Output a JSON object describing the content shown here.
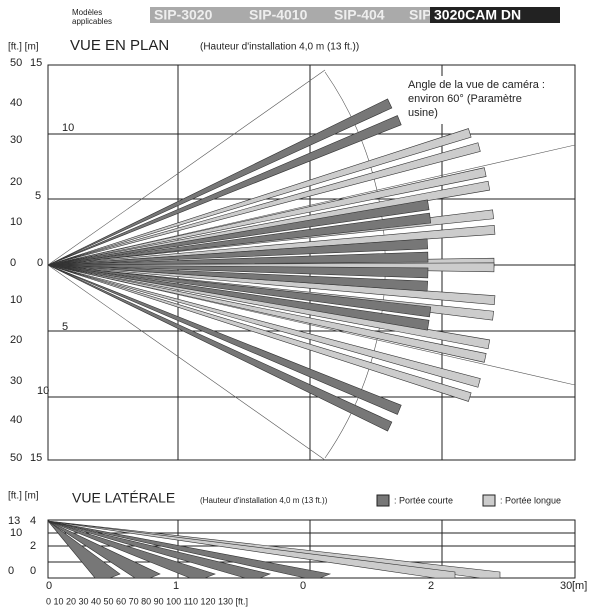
{
  "header": {
    "caption": [
      "Modèles",
      "applicables"
    ],
    "models": [
      "SIP-3020",
      "SIP-4010",
      "SIP-404",
      "SIP-",
      "3020CAM DN"
    ]
  },
  "plan": {
    "units": "[ft.] [m]",
    "title": "VUE EN PLAN",
    "subtitle": "(Hauteur d'installation 4,0 m (13 ft.))",
    "ft_labels": [
      "50",
      "40",
      "30",
      "20",
      "10",
      "0",
      "10",
      "20",
      "30",
      "40",
      "50"
    ],
    "m_labels": [
      "15",
      "10",
      "5",
      "0",
      "5",
      "10",
      "15"
    ],
    "annotation": [
      "Angle de la vue de caméra :",
      "environ    60°    (Paramètre",
      "usine)"
    ]
  },
  "side": {
    "units": "[ft.] [m]",
    "title": "VUE LATÉRALE",
    "subtitle": "(Hauteur d'installation 4,0 m (13 ft.))",
    "legend": [
      ": Portée courte",
      ": Portée longue"
    ],
    "left_labels": [
      "13",
      "4",
      "10",
      "2",
      "0",
      "0"
    ],
    "m_labels": [
      "0",
      "1",
      "0",
      "2",
      "30",
      "[m]"
    ],
    "ft_row": "0 10 20 30 40 50 60 70 80 90 100 110 120 130 [ft.]"
  }
}
